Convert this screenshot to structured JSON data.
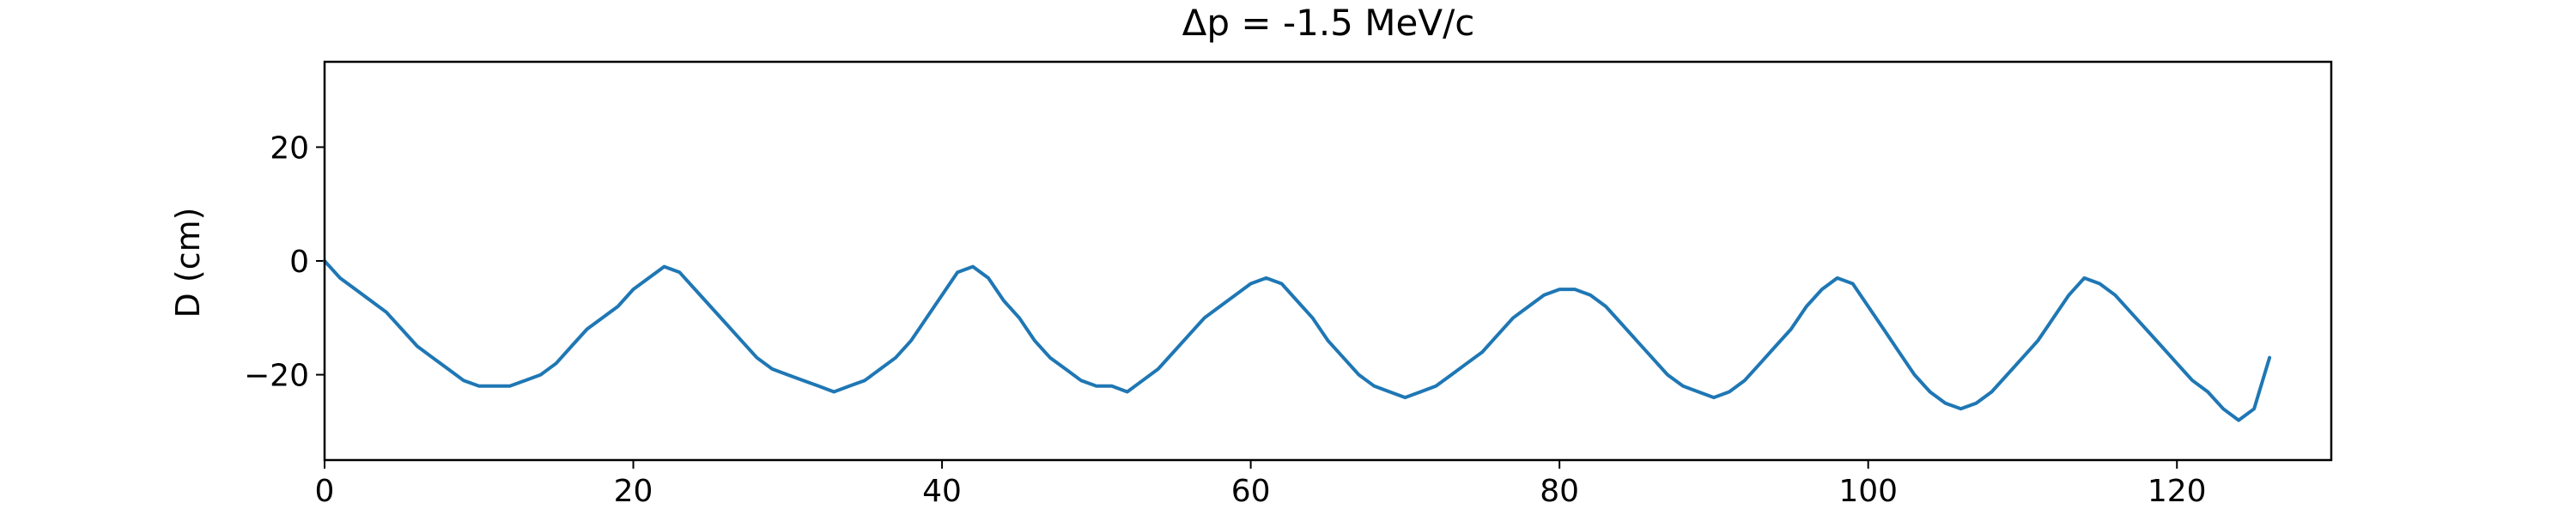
{
  "chart_data": {
    "type": "line",
    "title": "Δp = -1.5 MeV/c",
    "xlabel": "",
    "ylabel": "D (cm)",
    "xlim": [
      0,
      130
    ],
    "ylim": [
      -35,
      35
    ],
    "xticks": [
      0,
      20,
      40,
      60,
      80,
      100,
      120
    ],
    "xtick_labels": [
      "0",
      "20",
      "40",
      "60",
      "80",
      "100",
      "120"
    ],
    "yticks": [
      -20,
      0,
      20
    ],
    "ytick_labels": [
      "−20",
      "0",
      "20"
    ],
    "grid": false,
    "legend": "none",
    "line_color": "#1f77b4",
    "series": [
      {
        "x": [
          0,
          1,
          2,
          3,
          4,
          5,
          6,
          7,
          8,
          9,
          10,
          11,
          12,
          13,
          14,
          15,
          16,
          17,
          18,
          19,
          20,
          21,
          22,
          23,
          24,
          25,
          26,
          27,
          28,
          29,
          30,
          31,
          32,
          33,
          34,
          35,
          36,
          37,
          38,
          39,
          40,
          41,
          42,
          43,
          44,
          45,
          46,
          47,
          48,
          49,
          50,
          51,
          52,
          53,
          54,
          55,
          56,
          57,
          58,
          59,
          60,
          61,
          62,
          63,
          64,
          65,
          66,
          67,
          68,
          69,
          70,
          71,
          72,
          73,
          74,
          75,
          76,
          77,
          78,
          79,
          80,
          81,
          82,
          83,
          84,
          85,
          86,
          87,
          88,
          89,
          90,
          91,
          92,
          93,
          94,
          95,
          96,
          97,
          98,
          99,
          100,
          101,
          102,
          103,
          104,
          105,
          106,
          107,
          108,
          109,
          110,
          111,
          112,
          113,
          114,
          115,
          116,
          117,
          118,
          119,
          120,
          121,
          122,
          123,
          124,
          125,
          126
        ],
        "values": [
          0,
          -3,
          -5,
          -7,
          -9,
          -12,
          -15,
          -17,
          -19,
          -21,
          -22,
          -22,
          -22,
          -21,
          -20,
          -18,
          -15,
          -12,
          -10,
          -8,
          -5,
          -3,
          -1,
          -2,
          -5,
          -8,
          -11,
          -14,
          -17,
          -19,
          -20,
          -21,
          -22,
          -23,
          -22,
          -21,
          -19,
          -17,
          -14,
          -10,
          -6,
          -2,
          -1,
          -3,
          -7,
          -10,
          -14,
          -17,
          -19,
          -21,
          -22,
          -22,
          -23,
          -21,
          -19,
          -16,
          -13,
          -10,
          -8,
          -6,
          -4,
          -3,
          -4,
          -7,
          -10,
          -14,
          -17,
          -20,
          -22,
          -23,
          -24,
          -23,
          -22,
          -20,
          -18,
          -16,
          -13,
          -10,
          -8,
          -6,
          -5,
          -5,
          -6,
          -8,
          -11,
          -14,
          -17,
          -20,
          -22,
          -23,
          -24,
          -23,
          -21,
          -18,
          -15,
          -12,
          -8,
          -5,
          -3,
          -4,
          -8,
          -12,
          -16,
          -20,
          -23,
          -25,
          -26,
          -25,
          -23,
          -20,
          -17,
          -14,
          -10,
          -6,
          -3,
          -4,
          -6,
          -9,
          -12,
          -15,
          -18,
          -21,
          -23,
          -26,
          -28,
          -26,
          -17
        ]
      }
    ]
  }
}
